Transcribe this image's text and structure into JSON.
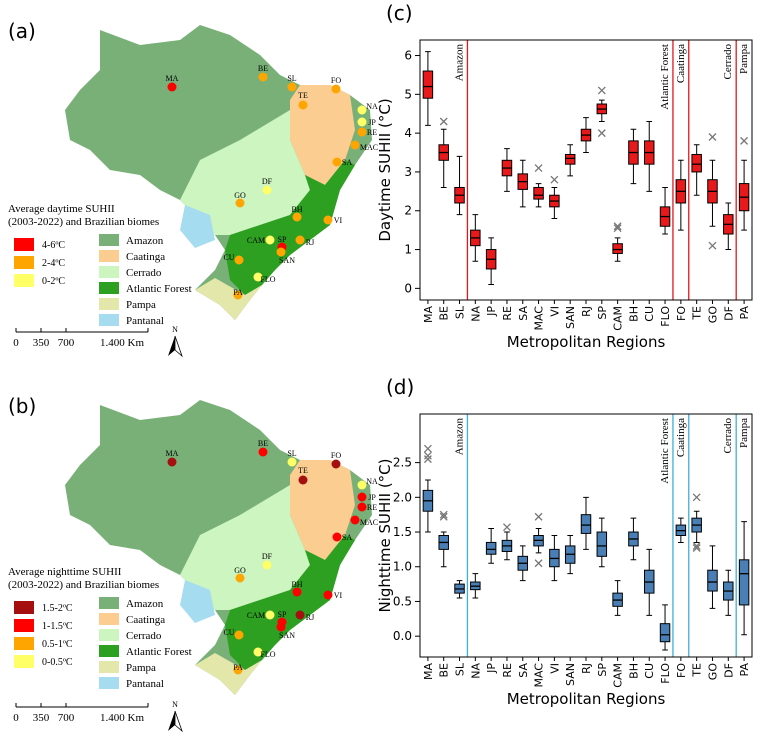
{
  "maps": [
    {
      "panel_label": "(a)",
      "legend_title": [
        "Average daytime  SUHII",
        "(2003-2022) and Brazilian biomes"
      ],
      "classes": [
        {
          "label": "4-6ºC",
          "color": "#ff0000"
        },
        {
          "label": "2-4ºC",
          "color": "#ffa500"
        },
        {
          "label": "0-2ºC",
          "color": "#ffff66"
        }
      ],
      "biomes": [
        {
          "label": "Amazon",
          "color": "#78b078"
        },
        {
          "label": "Caatinga",
          "color": "#fbcd90"
        },
        {
          "label": "Cerrado",
          "color": "#ccf5c0"
        },
        {
          "label": "Atlantic Forest",
          "color": "#2ea021"
        },
        {
          "label": "Pampa",
          "color": "#e3e7aa"
        },
        {
          "label": "Pantanal",
          "color": "#a6dcf0"
        }
      ],
      "cities": [
        {
          "name": "MA",
          "color": "#ff0000"
        },
        {
          "name": "BE",
          "color": "#ffa500"
        },
        {
          "name": "SL",
          "color": "#ffa500"
        },
        {
          "name": "FO",
          "color": "#ffa500"
        },
        {
          "name": "NA",
          "color": "#ffff66"
        },
        {
          "name": "JP",
          "color": "#ffff66"
        },
        {
          "name": "RE",
          "color": "#ffa500"
        },
        {
          "name": "MAC",
          "color": "#ffa500"
        },
        {
          "name": "SA",
          "color": "#ffa500"
        },
        {
          "name": "TE",
          "color": "#ffa500"
        },
        {
          "name": "DF",
          "color": "#ffff66"
        },
        {
          "name": "GO",
          "color": "#ffa500"
        },
        {
          "name": "BH",
          "color": "#ffa500"
        },
        {
          "name": "VI",
          "color": "#ffa500"
        },
        {
          "name": "RJ",
          "color": "#ffa500"
        },
        {
          "name": "SP",
          "color": "#ff0000"
        },
        {
          "name": "CAM",
          "color": "#ffff66"
        },
        {
          "name": "SAN",
          "color": "#ffa500"
        },
        {
          "name": "CU",
          "color": "#ffa500"
        },
        {
          "name": "FLO",
          "color": "#ffff66"
        },
        {
          "name": "PA",
          "color": "#ffa500"
        }
      ],
      "scale_labels": [
        "0",
        "350",
        "700",
        "1.400 Km"
      ],
      "north": "N"
    },
    {
      "panel_label": "(b)",
      "legend_title": [
        "Average nighttime SUHII",
        "(2003-2022) and Brazilian biomes"
      ],
      "classes": [
        {
          "label": "1.5-2ºC",
          "color": "#a50f0f"
        },
        {
          "label": "1-1.5ºC",
          "color": "#ff0000"
        },
        {
          "label": "0.5-1ºC",
          "color": "#ffa500"
        },
        {
          "label": "0-0.5ºC",
          "color": "#ffff66"
        }
      ],
      "biomes": [
        {
          "label": "Amazon",
          "color": "#78b078"
        },
        {
          "label": "Caatinga",
          "color": "#fbcd90"
        },
        {
          "label": "Cerrado",
          "color": "#ccf5c0"
        },
        {
          "label": "Atlantic Forest",
          "color": "#2ea021"
        },
        {
          "label": "Pampa",
          "color": "#e3e7aa"
        },
        {
          "label": "Pantanal",
          "color": "#a6dcf0"
        }
      ],
      "cities": [
        {
          "name": "MA",
          "color": "#a50f0f"
        },
        {
          "name": "BE",
          "color": "#ff0000"
        },
        {
          "name": "SL",
          "color": "#ffff66"
        },
        {
          "name": "FO",
          "color": "#a50f0f"
        },
        {
          "name": "NA",
          "color": "#ffff66"
        },
        {
          "name": "JP",
          "color": "#ff0000"
        },
        {
          "name": "RE",
          "color": "#ff0000"
        },
        {
          "name": "MAC",
          "color": "#ff0000"
        },
        {
          "name": "SA",
          "color": "#ff0000"
        },
        {
          "name": "TE",
          "color": "#a50f0f"
        },
        {
          "name": "DF",
          "color": "#ffff66"
        },
        {
          "name": "GO",
          "color": "#ffa500"
        },
        {
          "name": "BH",
          "color": "#ff0000"
        },
        {
          "name": "VI",
          "color": "#ff0000"
        },
        {
          "name": "RJ",
          "color": "#a50f0f"
        },
        {
          "name": "SP",
          "color": "#ff0000"
        },
        {
          "name": "CAM",
          "color": "#ffff66"
        },
        {
          "name": "SAN",
          "color": "#ff0000"
        },
        {
          "name": "CU",
          "color": "#ffa500"
        },
        {
          "name": "FLO",
          "color": "#ffff66"
        },
        {
          "name": "PA",
          "color": "#ffa500"
        }
      ],
      "scale_labels": [
        "0",
        "350",
        "700",
        "1.400 Km"
      ],
      "north": "N"
    }
  ],
  "chart_data": [
    {
      "type": "box",
      "panel_label": "(c)",
      "y_label": "Daytime SUHII (°C)",
      "x_label": "Metropolitan Regions",
      "color": "#e8191b",
      "separator_color": "#e0191b",
      "ylim": [
        -0.3,
        6.4
      ],
      "yticks": [
        0,
        1,
        2,
        3,
        4,
        5,
        6
      ],
      "categories": [
        "MA",
        "BE",
        "SL",
        "NA",
        "JP",
        "RE",
        "SA",
        "MAC",
        "VI",
        "SAN",
        "RJ",
        "SP",
        "CAM",
        "BH",
        "CU",
        "FLO",
        "FO",
        "TE",
        "GO",
        "DF",
        "PA"
      ],
      "biome_groups": [
        {
          "label": "Amazon",
          "members": [
            "MA",
            "BE",
            "SL"
          ]
        },
        {
          "label": "Atlantic Forest",
          "members": [
            "NA",
            "JP",
            "RE",
            "SA",
            "MAC",
            "VI",
            "SAN",
            "RJ",
            "SP",
            "CAM",
            "BH",
            "CU",
            "FLO"
          ]
        },
        {
          "label": "Caatinga",
          "members": [
            "FO"
          ]
        },
        {
          "label": "Cerrado",
          "members": [
            "TE",
            "GO",
            "DF"
          ]
        },
        {
          "label": "Pampa",
          "members": [
            "PA"
          ]
        }
      ],
      "boxes": [
        {
          "whisker_low": 4.2,
          "q1": 4.9,
          "median": 5.2,
          "q3": 5.6,
          "whisker_high": 6.1,
          "outliers": []
        },
        {
          "whisker_low": 2.6,
          "q1": 3.3,
          "median": 3.5,
          "q3": 3.7,
          "whisker_high": 4.1,
          "outliers": [
            4.3
          ]
        },
        {
          "whisker_low": 1.9,
          "q1": 2.2,
          "median": 2.4,
          "q3": 2.6,
          "whisker_high": 3.4,
          "outliers": []
        },
        {
          "whisker_low": 0.7,
          "q1": 1.1,
          "median": 1.3,
          "q3": 1.5,
          "whisker_high": 1.9,
          "outliers": []
        },
        {
          "whisker_low": 0.1,
          "q1": 0.5,
          "median": 0.75,
          "q3": 1.0,
          "whisker_high": 1.3,
          "outliers": []
        },
        {
          "whisker_low": 2.5,
          "q1": 2.9,
          "median": 3.1,
          "q3": 3.3,
          "whisker_high": 3.6,
          "outliers": []
        },
        {
          "whisker_low": 2.1,
          "q1": 2.55,
          "median": 2.75,
          "q3": 2.95,
          "whisker_high": 3.3,
          "outliers": []
        },
        {
          "whisker_low": 2.1,
          "q1": 2.3,
          "median": 2.4,
          "q3": 2.6,
          "whisker_high": 2.7,
          "outliers": [
            3.1
          ]
        },
        {
          "whisker_low": 1.8,
          "q1": 2.1,
          "median": 2.25,
          "q3": 2.4,
          "whisker_high": 2.6,
          "outliers": [
            2.8
          ]
        },
        {
          "whisker_low": 2.9,
          "q1": 3.2,
          "median": 3.35,
          "q3": 3.45,
          "whisker_high": 3.7,
          "outliers": []
        },
        {
          "whisker_low": 3.5,
          "q1": 3.8,
          "median": 3.95,
          "q3": 4.1,
          "whisker_high": 4.4,
          "outliers": []
        },
        {
          "whisker_low": 4.3,
          "q1": 4.5,
          "median": 4.62,
          "q3": 4.75,
          "whisker_high": 4.85,
          "outliers": [
            5.1,
            4.0
          ]
        },
        {
          "whisker_low": 0.7,
          "q1": 0.9,
          "median": 1.0,
          "q3": 1.15,
          "whisker_high": 1.3,
          "outliers": [
            1.6,
            1.55
          ]
        },
        {
          "whisker_low": 2.7,
          "q1": 3.2,
          "median": 3.5,
          "q3": 3.8,
          "whisker_high": 4.1,
          "outliers": []
        },
        {
          "whisker_low": 2.5,
          "q1": 3.2,
          "median": 3.5,
          "q3": 3.8,
          "whisker_high": 4.3,
          "outliers": []
        },
        {
          "whisker_low": 1.4,
          "q1": 1.6,
          "median": 1.85,
          "q3": 2.1,
          "whisker_high": 2.6,
          "outliers": []
        },
        {
          "whisker_low": 1.5,
          "q1": 2.2,
          "median": 2.5,
          "q3": 2.8,
          "whisker_high": 3.3,
          "outliers": []
        },
        {
          "whisker_low": 2.4,
          "q1": 3.0,
          "median": 3.2,
          "q3": 3.45,
          "whisker_high": 3.7,
          "outliers": []
        },
        {
          "whisker_low": 1.6,
          "q1": 2.2,
          "median": 2.5,
          "q3": 2.8,
          "whisker_high": 3.3,
          "outliers": [
            3.9,
            1.1
          ]
        },
        {
          "whisker_low": 1.0,
          "q1": 1.4,
          "median": 1.65,
          "q3": 1.9,
          "whisker_high": 2.2,
          "outliers": []
        },
        {
          "whisker_low": 1.5,
          "q1": 2.0,
          "median": 2.35,
          "q3": 2.7,
          "whisker_high": 3.3,
          "outliers": [
            3.8
          ]
        }
      ]
    },
    {
      "type": "box",
      "panel_label": "(d)",
      "y_label": "Nighttime SUHII (°C)",
      "x_label": "Metropolitan Regions",
      "color": "#4a7fb5",
      "separator_color": "#3fb0d8",
      "ylim": [
        -0.3,
        3.2
      ],
      "yticks": [
        {
          "value": 0,
          "label": "0.0"
        },
        0.5,
        {
          "value": 1,
          "label": "1.0"
        },
        1.5,
        {
          "value": 2,
          "label": "2.0"
        },
        2.5
      ],
      "categories": [
        "MA",
        "BE",
        "SL",
        "NA",
        "JP",
        "RE",
        "SA",
        "MAC",
        "VI",
        "SAN",
        "RJ",
        "SP",
        "CAM",
        "BH",
        "CU",
        "FLO",
        "FO",
        "TE",
        "GO",
        "DF",
        "PA"
      ],
      "biome_groups": [
        {
          "label": "Amazon",
          "members": [
            "MA",
            "BE",
            "SL"
          ]
        },
        {
          "label": "Atlantic Forest",
          "members": [
            "NA",
            "JP",
            "RE",
            "SA",
            "MAC",
            "VI",
            "SAN",
            "RJ",
            "SP",
            "CAM",
            "BH",
            "CU",
            "FLO"
          ]
        },
        {
          "label": "Caatinga",
          "members": [
            "FO"
          ]
        },
        {
          "label": "Cerrado",
          "members": [
            "TE",
            "GO",
            "DF"
          ]
        },
        {
          "label": "Pampa",
          "members": [
            "PA"
          ]
        }
      ],
      "boxes": [
        {
          "whisker_low": 1.5,
          "q1": 1.8,
          "median": 1.95,
          "q3": 2.1,
          "whisker_high": 2.25,
          "outliers": [
            2.7,
            2.6,
            2.55
          ]
        },
        {
          "whisker_low": 1.0,
          "q1": 1.25,
          "median": 1.35,
          "q3": 1.45,
          "whisker_high": 1.5,
          "outliers": [
            1.75,
            1.72
          ]
        },
        {
          "whisker_low": 0.55,
          "q1": 0.62,
          "median": 0.68,
          "q3": 0.75,
          "whisker_high": 0.8,
          "outliers": []
        },
        {
          "whisker_low": 0.55,
          "q1": 0.67,
          "median": 0.72,
          "q3": 0.78,
          "whisker_high": 0.9,
          "outliers": []
        },
        {
          "whisker_low": 1.05,
          "q1": 1.18,
          "median": 1.25,
          "q3": 1.35,
          "whisker_high": 1.55,
          "outliers": []
        },
        {
          "whisker_low": 1.1,
          "q1": 1.22,
          "median": 1.3,
          "q3": 1.38,
          "whisker_high": 1.5,
          "outliers": [
            1.57
          ]
        },
        {
          "whisker_low": 0.8,
          "q1": 0.95,
          "median": 1.05,
          "q3": 1.15,
          "whisker_high": 1.3,
          "outliers": []
        },
        {
          "whisker_low": 1.2,
          "q1": 1.3,
          "median": 1.38,
          "q3": 1.45,
          "whisker_high": 1.55,
          "outliers": [
            1.72,
            1.05
          ]
        },
        {
          "whisker_low": 0.8,
          "q1": 1.0,
          "median": 1.12,
          "q3": 1.25,
          "whisker_high": 1.45,
          "outliers": []
        },
        {
          "whisker_low": 0.9,
          "q1": 1.05,
          "median": 1.18,
          "q3": 1.3,
          "whisker_high": 1.45,
          "outliers": []
        },
        {
          "whisker_low": 1.25,
          "q1": 1.48,
          "median": 1.6,
          "q3": 1.75,
          "whisker_high": 2.0,
          "outliers": []
        },
        {
          "whisker_low": 1.0,
          "q1": 1.15,
          "median": 1.3,
          "q3": 1.5,
          "whisker_high": 1.7,
          "outliers": []
        },
        {
          "whisker_low": 0.3,
          "q1": 0.43,
          "median": 0.52,
          "q3": 0.62,
          "whisker_high": 0.8,
          "outliers": []
        },
        {
          "whisker_low": 1.1,
          "q1": 1.3,
          "median": 1.4,
          "q3": 1.5,
          "whisker_high": 1.7,
          "outliers": []
        },
        {
          "whisker_low": 0.3,
          "q1": 0.62,
          "median": 0.78,
          "q3": 0.95,
          "whisker_high": 1.25,
          "outliers": []
        },
        {
          "whisker_low": -0.2,
          "q1": -0.08,
          "median": 0.02,
          "q3": 0.18,
          "whisker_high": 0.45,
          "outliers": []
        },
        {
          "whisker_low": 1.35,
          "q1": 1.45,
          "median": 1.52,
          "q3": 1.6,
          "whisker_high": 1.7,
          "outliers": []
        },
        {
          "whisker_low": 1.35,
          "q1": 1.5,
          "median": 1.6,
          "q3": 1.7,
          "whisker_high": 1.8,
          "outliers": [
            2.0,
            1.3,
            1.27
          ]
        },
        {
          "whisker_low": 0.4,
          "q1": 0.65,
          "median": 0.78,
          "q3": 0.95,
          "whisker_high": 1.3,
          "outliers": []
        },
        {
          "whisker_low": 0.3,
          "q1": 0.52,
          "median": 0.65,
          "q3": 0.78,
          "whisker_high": 0.95,
          "outliers": []
        },
        {
          "whisker_low": 0.02,
          "q1": 0.45,
          "median": 0.9,
          "q3": 1.1,
          "whisker_high": 1.65,
          "outliers": []
        }
      ]
    }
  ]
}
